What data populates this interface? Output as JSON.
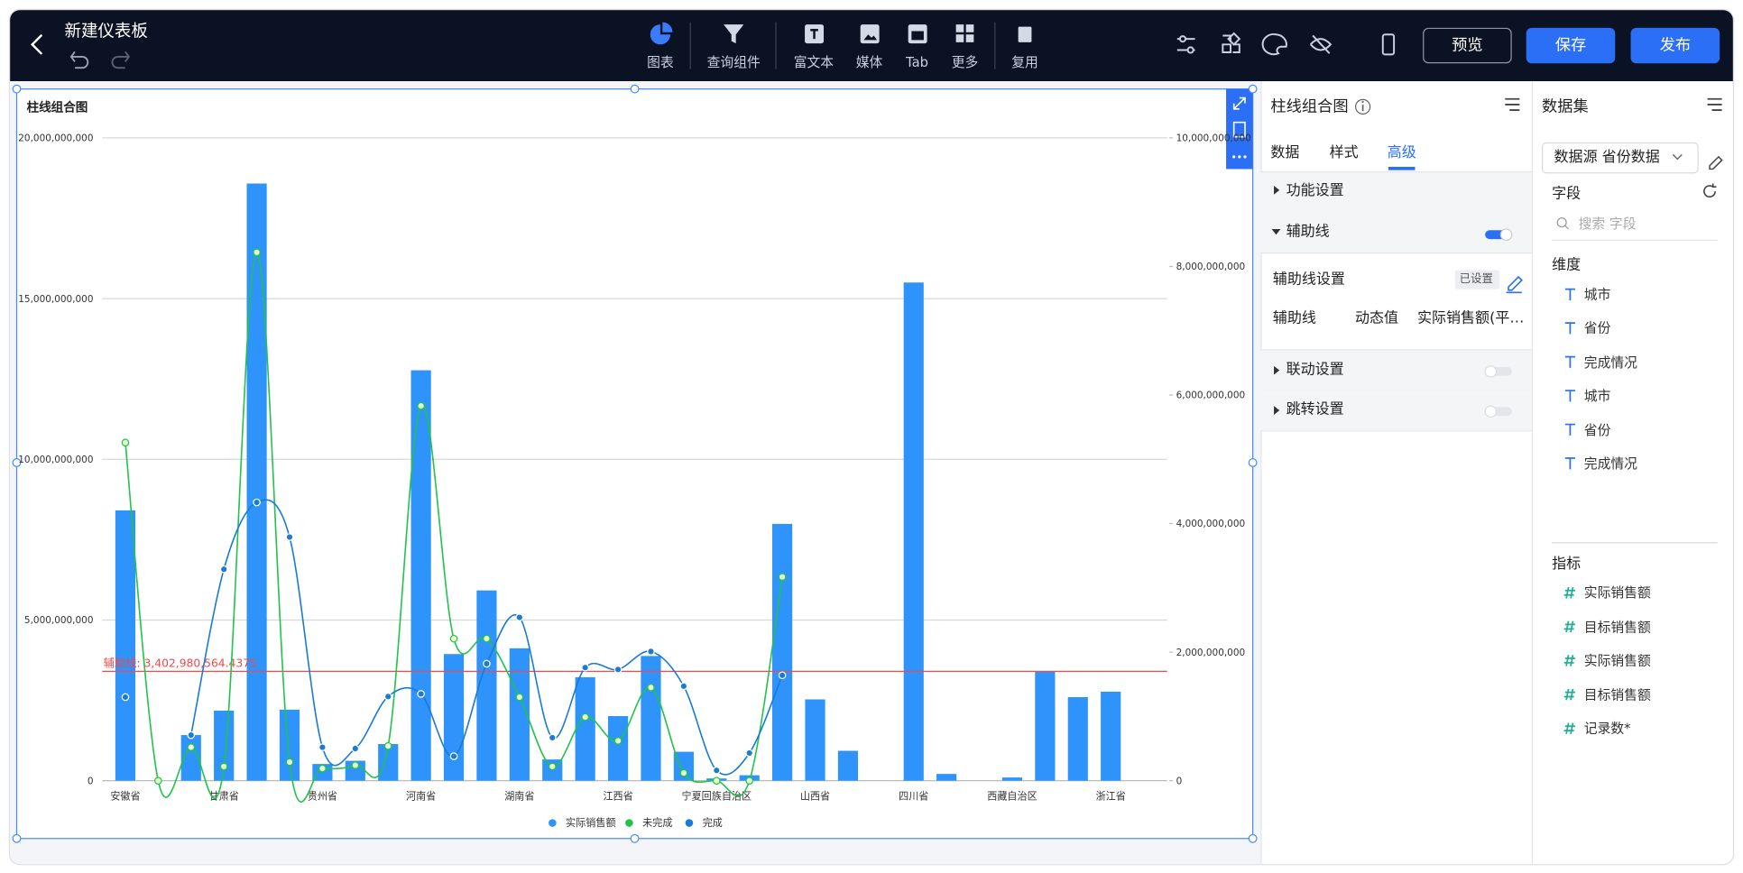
{
  "header": {
    "title": "新建仪表板"
  },
  "toolbar": [
    "图表",
    "查询组件",
    "富文本",
    "媒体",
    "Tab",
    "更多",
    "复用"
  ],
  "buttons": [
    "预览",
    "保存",
    "发布"
  ],
  "config_panel": {
    "title": "柱线组合图",
    "tabs": [
      "数据",
      "样式",
      "高级"
    ],
    "sections": [
      "功能设置",
      "辅助线",
      "联动设置",
      "跳转设置"
    ],
    "reference_setting": {
      "label": "辅助线设置",
      "status": "已设置"
    },
    "reference_row": [
      "辅助线",
      "动态值",
      "实际销售额(平…"
    ]
  },
  "data_panel": {
    "title": "数据集",
    "source": "数据源 省份数据",
    "fields_title": "字段",
    "search_placeholder": "搜索 字段",
    "dimensions_title": "维度",
    "dimensions": [
      "城市",
      "省份",
      "完成情况",
      "城市",
      "省份",
      "完成情况"
    ],
    "measures_title": "指标",
    "measures": [
      "实际销售额",
      "目标销售额",
      "实际销售额",
      "目标销售额",
      "记录数*"
    ]
  },
  "chart_data": {
    "type": "bar-line",
    "title": "柱线组合图",
    "categories": [
      "安徽省",
      null,
      null,
      "甘肃省",
      null,
      null,
      "贵州省",
      null,
      null,
      "河南省",
      null,
      null,
      "湖南省",
      null,
      null,
      "江西省",
      null,
      null,
      "宁夏回族自治区",
      null,
      null,
      "山西省",
      null,
      null,
      "四川省",
      null,
      null,
      "西藏自治区",
      null,
      null,
      "浙江省"
    ],
    "series": [
      {
        "name": "实际销售额",
        "type": "bar",
        "color": "#2e93fa",
        "values": [
          8410000000,
          0,
          1420000000,
          2180000000,
          18580000000,
          2210000000,
          520000000,
          620000000,
          1140000000,
          12770000000,
          3940000000,
          5920000000,
          4120000000,
          660000000,
          3220000000,
          2010000000,
          3880000000,
          900000000,
          70000000,
          170000000,
          7990000000,
          2530000000,
          930000000,
          0,
          15500000000,
          210000000,
          0,
          100000000,
          3390000000,
          2600000000,
          2770000000
        ]
      },
      {
        "name": "未完成",
        "type": "line",
        "axis": "y2",
        "color": "#21c34b",
        "values": [
          5260000000,
          0,
          520000000,
          220000000,
          8220000000,
          290000000,
          190000000,
          240000000,
          540000000,
          5830000000,
          2210000000,
          2210000000,
          1300000000,
          220000000,
          990000000,
          620000000,
          1450000000,
          120000000,
          0,
          0,
          3170000000,
          null,
          null,
          null,
          null,
          null,
          null,
          null,
          null,
          null,
          null
        ]
      },
      {
        "name": "完成",
        "type": "line",
        "axis": "y2",
        "color": "#1a7ad4",
        "values": [
          1300000000,
          null,
          710000000,
          3290000000,
          4330000000,
          3790000000,
          520000000,
          500000000,
          1310000000,
          1350000000,
          380000000,
          1820000000,
          2540000000,
          670000000,
          1760000000,
          1730000000,
          2010000000,
          1470000000,
          160000000,
          430000000,
          1640000000,
          null,
          null,
          null,
          null,
          null,
          null,
          null,
          null,
          null,
          null
        ]
      }
    ],
    "ylim": [
      0,
      20000000000
    ],
    "yticks": [
      0,
      {
        "value": 5000000000,
        "label": "5,000,000,000"
      },
      {
        "value": 10000000000,
        "label": "10,000,000,000"
      },
      {
        "value": 15000000000,
        "label": "15,000,000,000"
      },
      {
        "value": 20000000000,
        "label": "20,000,000,000"
      }
    ],
    "y2lim": [
      0,
      10000000000
    ],
    "y2ticks": [
      0,
      {
        "value": 2000000000,
        "label": "2,000,000,000"
      },
      {
        "value": 4000000000,
        "label": "4,000,000,000"
      },
      {
        "value": 6000000000,
        "label": "6,000,000,000"
      },
      {
        "value": 8000000000,
        "label": "8,000,000,000"
      },
      {
        "value": 10000000000,
        "label": "10,000,000,000"
      }
    ],
    "reference_line": {
      "value": 3402980564.4375,
      "label": "辅助线: 3,402,980,564.4375",
      "color": "#f04a4a"
    },
    "grid": true,
    "legend": "bottom"
  }
}
